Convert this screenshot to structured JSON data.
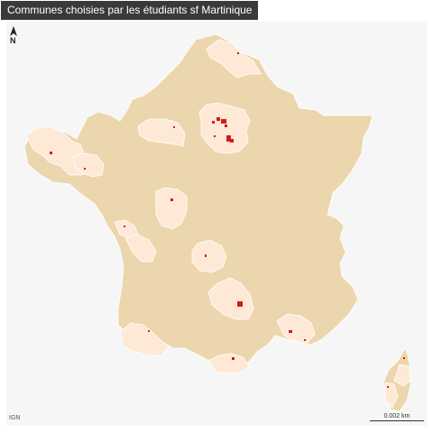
{
  "title": "Communes choisies par les étudiants sf Martinique",
  "north_label": "N",
  "source": "IGN",
  "scale_label": "0.002 km",
  "legend_colors": {
    "background": "#f6f6f6",
    "territory": "#ecd6ad",
    "study_area": "#fde9d6",
    "selected_commune": "#d7191c",
    "border": "#ffffff"
  }
}
